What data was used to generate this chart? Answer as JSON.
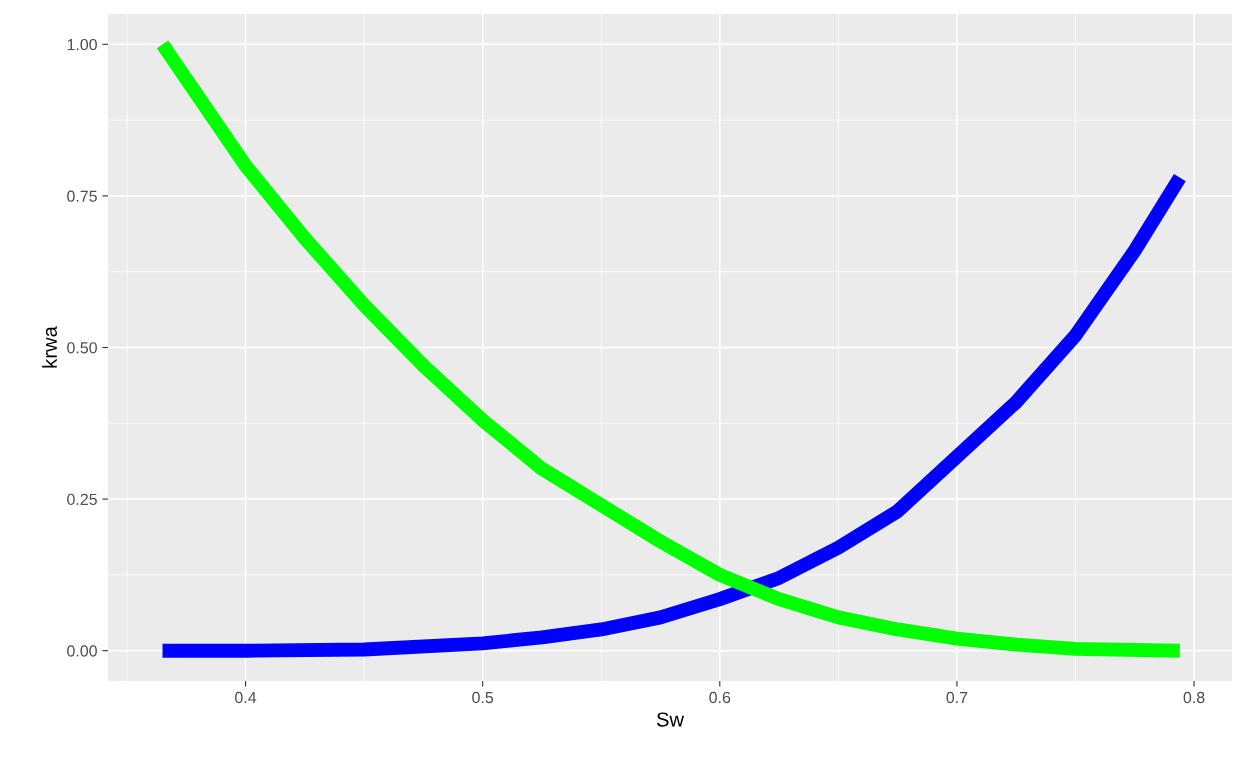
{
  "chart_data": {
    "type": "line",
    "xlabel": "Sw",
    "ylabel": "krwa",
    "series": [
      {
        "color": "#0000ff",
        "x": [
          0.365,
          0.4,
          0.45,
          0.5,
          0.525,
          0.55,
          0.575,
          0.6,
          0.625,
          0.65,
          0.675,
          0.7,
          0.725,
          0.75,
          0.775,
          0.794
        ],
        "values": [
          0,
          0,
          0.002,
          0.012,
          0.022,
          0.035,
          0.055,
          0.085,
          0.12,
          0.17,
          0.23,
          0.32,
          0.41,
          0.52,
          0.66,
          0.78
        ]
      },
      {
        "color": "#00ff00",
        "x": [
          0.365,
          0.4,
          0.425,
          0.45,
          0.475,
          0.5,
          0.525,
          0.55,
          0.575,
          0.6,
          0.625,
          0.65,
          0.675,
          0.7,
          0.725,
          0.75,
          0.794
        ],
        "values": [
          1.0,
          0.8,
          0.68,
          0.57,
          0.47,
          0.38,
          0.3,
          0.24,
          0.18,
          0.125,
          0.085,
          0.055,
          0.035,
          0.02,
          0.01,
          0.003,
          0
        ]
      }
    ],
    "xlim": [
      0.342,
      0.816
    ],
    "ylim": [
      -0.05,
      1.05
    ],
    "xticks": [
      0.4,
      0.5,
      0.6,
      0.7,
      0.8
    ],
    "yticks": [
      {
        "value": 0,
        "label": "0.00"
      },
      {
        "value": 0.25,
        "label": "0.25"
      },
      {
        "value": 0.5,
        "label": "0.50"
      },
      {
        "value": 0.75,
        "label": "0.75"
      },
      {
        "value": 1,
        "label": "1.00"
      }
    ],
    "grid": true,
    "marker": "none",
    "line_style": "solid"
  }
}
